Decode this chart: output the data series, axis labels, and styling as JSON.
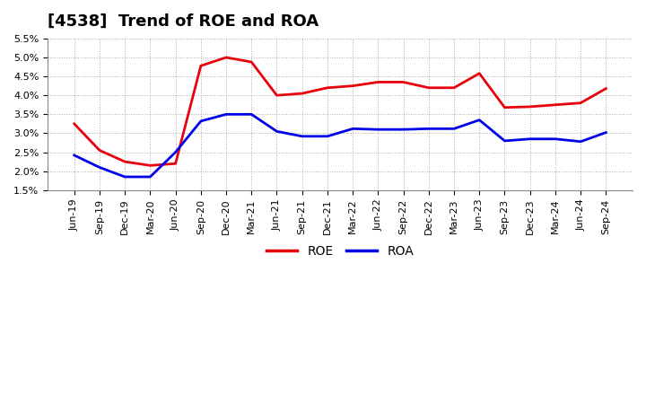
{
  "title": "[4538]  Trend of ROE and ROA",
  "x_labels": [
    "Jun-19",
    "Sep-19",
    "Dec-19",
    "Mar-20",
    "Jun-20",
    "Sep-20",
    "Dec-20",
    "Mar-21",
    "Jun-21",
    "Sep-21",
    "Dec-21",
    "Mar-22",
    "Jun-22",
    "Sep-22",
    "Dec-22",
    "Mar-23",
    "Jun-23",
    "Sep-23",
    "Dec-23",
    "Mar-24",
    "Jun-24",
    "Sep-24"
  ],
  "roe": [
    3.25,
    2.55,
    2.25,
    2.15,
    2.2,
    4.78,
    5.0,
    4.88,
    4.0,
    4.05,
    4.2,
    4.25,
    4.35,
    4.35,
    4.2,
    4.2,
    4.58,
    3.68,
    3.7,
    3.75,
    3.8,
    4.18
  ],
  "roa": [
    2.42,
    2.1,
    1.85,
    1.85,
    2.5,
    3.32,
    3.5,
    3.5,
    3.05,
    2.92,
    2.92,
    3.12,
    3.1,
    3.1,
    3.12,
    3.12,
    3.35,
    2.8,
    2.85,
    2.85,
    2.78,
    3.02
  ],
  "roe_color": "#e8000d",
  "roa_color": "#0000e8",
  "ylim_min": 1.5,
  "ylim_max": 5.5,
  "yticks": [
    1.5,
    2.0,
    2.5,
    3.0,
    3.5,
    4.0,
    4.5,
    5.0,
    5.5
  ],
  "background_color": "#ffffff",
  "plot_bg_color": "#ffffff",
  "grid_color": "#aaaaaa",
  "legend_labels": [
    "ROE",
    "ROA"
  ],
  "line_width": 2.0
}
